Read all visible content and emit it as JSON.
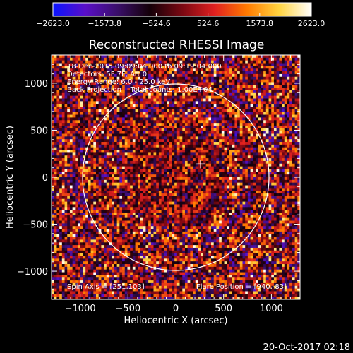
{
  "chart_data": {
    "type": "heatmap",
    "title": "Reconstructed RHESSI Image",
    "xlabel": "Heliocentric X (arcsec)",
    "ylabel": "Heliocentric Y (arcsec)",
    "xlim": [
      -1300,
      1300
    ],
    "ylim": [
      -1300,
      1300
    ],
    "xticks": [
      -1000,
      -500,
      0,
      500,
      1000
    ],
    "yticks": [
      -1000,
      -500,
      0,
      500,
      1000
    ],
    "xtick_labels": [
      "−1000",
      "−500",
      "0",
      "500",
      "1000"
    ],
    "ytick_labels": [
      "−1000",
      "−500",
      "0",
      "500",
      "1000"
    ],
    "colorbar": {
      "min": -2623.0,
      "max": 2623.0,
      "tick_labels": [
        "−2623.0",
        "−1573.8",
        "−524.6",
        "524.6",
        "1573.8",
        "2623.0"
      ],
      "colormap": [
        "#0a14ff",
        "#5a0fc8",
        "#3a0f6a",
        "#140008",
        "#7a0812",
        "#e02020",
        "#ff7a00",
        "#ffd440",
        "#ffffff"
      ]
    },
    "annotations": [
      "18-Dec-2015 09:09:04.000 to 09:19:04.000",
      "Detectors: 5F 7F, Att 0",
      "Energy Range: 6.0 - 25.0 keV",
      "Back Projection    Total counts: 1.00E+04"
    ],
    "spin_axis": "Spin Axis = [251,103]",
    "flare_position": "Flare Position = [940,-83]",
    "solar_limb": {
      "center": [
        0,
        0
      ],
      "radius_arcsec": 975
    },
    "marker_position": [
      260,
      140
    ],
    "pixel_grid": {
      "cols": 95,
      "rows": 90
    },
    "color": {
      "axes": "#ffffff",
      "background": "#000000"
    }
  },
  "footer_timestamp": "20-Oct-2017 02:18"
}
